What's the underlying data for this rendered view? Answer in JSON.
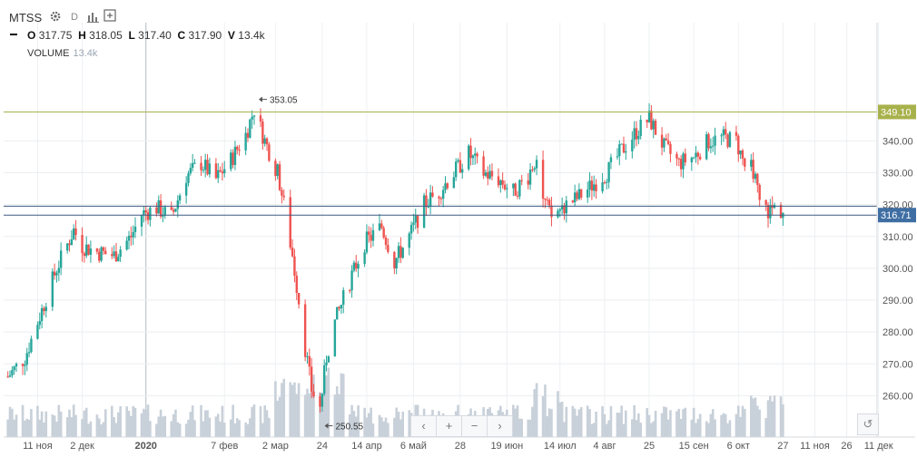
{
  "header": {
    "symbol": "MTSS",
    "interval": "D",
    "ohlcv": {
      "o_label": "O",
      "o": "317.75",
      "h_label": "H",
      "h": "318.05",
      "l_label": "L",
      "l": "317.40",
      "c_label": "C",
      "c": "317.90",
      "v_label": "V",
      "v": "13.4k"
    },
    "volume_label": "VOLUME",
    "volume_value": "13.4k"
  },
  "icons": {
    "settings": "gear-icon",
    "indicators": "bar-chart-icon",
    "add": "plus-box-icon",
    "collapse": "minus-icon",
    "reset": "undo-icon"
  },
  "controls": {
    "prev": "‹",
    "zoom_in": "+",
    "zoom_out": "−",
    "next": "›",
    "reset": "↺"
  },
  "colors": {
    "up": "#26a69a",
    "down": "#ef5350",
    "volume": "#c8d0d9",
    "resistance_line": "#a8b24c",
    "support_line": "#3c5a82",
    "price_label_bg": "#3f6ea3",
    "resistance_label_bg": "#a8b24c"
  },
  "chart_data": {
    "type": "candlestick",
    "title": "",
    "xlabel": "",
    "ylabel": "",
    "ylim": [
      247,
      365
    ],
    "y_ticks": [
      260,
      270,
      280,
      290,
      300,
      310,
      320,
      330,
      340
    ],
    "x_ticks": [
      "11 ноя",
      "2 дек",
      "2020",
      "7 фев",
      "2 мар",
      "24",
      "14 апр",
      "6 май",
      "28",
      "19 июн",
      "14 июл",
      "4 авг",
      "25",
      "15 сен",
      "6 окт",
      "27",
      "11 ноя",
      "26",
      "11 дек"
    ],
    "x_date_range": [
      "2019-10-26",
      "2020-12-15"
    ],
    "annotations": [
      {
        "label": "353.05",
        "value": 353.05,
        "kind": "high"
      },
      {
        "label": "250.55",
        "value": 250.55,
        "kind": "low"
      }
    ],
    "horizontal_lines": [
      {
        "value": 349.1,
        "label": "349.10",
        "kind": "resistance"
      },
      {
        "value": 316.71,
        "label": "316.71",
        "kind": "current"
      },
      {
        "value": 319.5,
        "label": "",
        "kind": "support"
      }
    ],
    "crosshair_x": "2020",
    "anchors": [
      [
        "2019-10-28",
        266
      ],
      [
        "2019-11-05",
        272
      ],
      [
        "2019-11-12",
        285
      ],
      [
        "2019-11-20",
        300
      ],
      [
        "2019-11-28",
        312
      ],
      [
        "2019-12-02",
        307
      ],
      [
        "2019-12-10",
        305
      ],
      [
        "2019-12-17",
        304
      ],
      [
        "2019-12-25",
        310
      ],
      [
        "2019-12-30",
        317
      ],
      [
        "2020-01-06",
        319
      ],
      [
        "2020-01-13",
        316
      ],
      [
        "2020-01-20",
        329
      ],
      [
        "2020-01-27",
        333
      ],
      [
        "2020-02-03",
        328
      ],
      [
        "2020-02-10",
        334
      ],
      [
        "2020-02-17",
        342
      ],
      [
        "2020-02-21",
        350
      ],
      [
        "2020-02-26",
        340
      ],
      [
        "2020-03-03",
        330
      ],
      [
        "2020-03-06",
        320
      ],
      [
        "2020-03-10",
        304
      ],
      [
        "2020-03-13",
        290
      ],
      [
        "2020-03-16",
        275
      ],
      [
        "2020-03-19",
        262
      ],
      [
        "2020-03-23",
        256
      ],
      [
        "2020-03-26",
        272
      ],
      [
        "2020-03-30",
        283
      ],
      [
        "2020-04-06",
        296
      ],
      [
        "2020-04-13",
        308
      ],
      [
        "2020-04-21",
        313
      ],
      [
        "2020-04-27",
        302
      ],
      [
        "2020-05-04",
        310
      ],
      [
        "2020-05-11",
        320
      ],
      [
        "2020-05-18",
        324
      ],
      [
        "2020-05-25",
        330
      ],
      [
        "2020-06-01",
        336
      ],
      [
        "2020-06-08",
        330
      ],
      [
        "2020-06-15",
        328
      ],
      [
        "2020-06-22",
        324
      ],
      [
        "2020-06-29",
        329
      ],
      [
        "2020-07-03",
        336
      ],
      [
        "2020-07-06",
        322
      ],
      [
        "2020-07-10",
        316
      ],
      [
        "2020-07-15",
        319
      ],
      [
        "2020-07-22",
        322
      ],
      [
        "2020-07-29",
        326
      ],
      [
        "2020-08-05",
        330
      ],
      [
        "2020-08-12",
        337
      ],
      [
        "2020-08-19",
        343
      ],
      [
        "2020-08-25",
        347
      ],
      [
        "2020-09-01",
        338
      ],
      [
        "2020-09-08",
        333
      ],
      [
        "2020-09-15",
        335
      ],
      [
        "2020-09-22",
        340
      ],
      [
        "2020-09-29",
        341
      ],
      [
        "2020-10-05",
        340
      ],
      [
        "2020-10-09",
        332
      ],
      [
        "2020-10-13",
        331
      ],
      [
        "2020-10-16",
        320
      ],
      [
        "2020-10-20",
        318
      ],
      [
        "2020-10-23",
        319
      ],
      [
        "2020-10-27",
        317.9
      ]
    ]
  }
}
